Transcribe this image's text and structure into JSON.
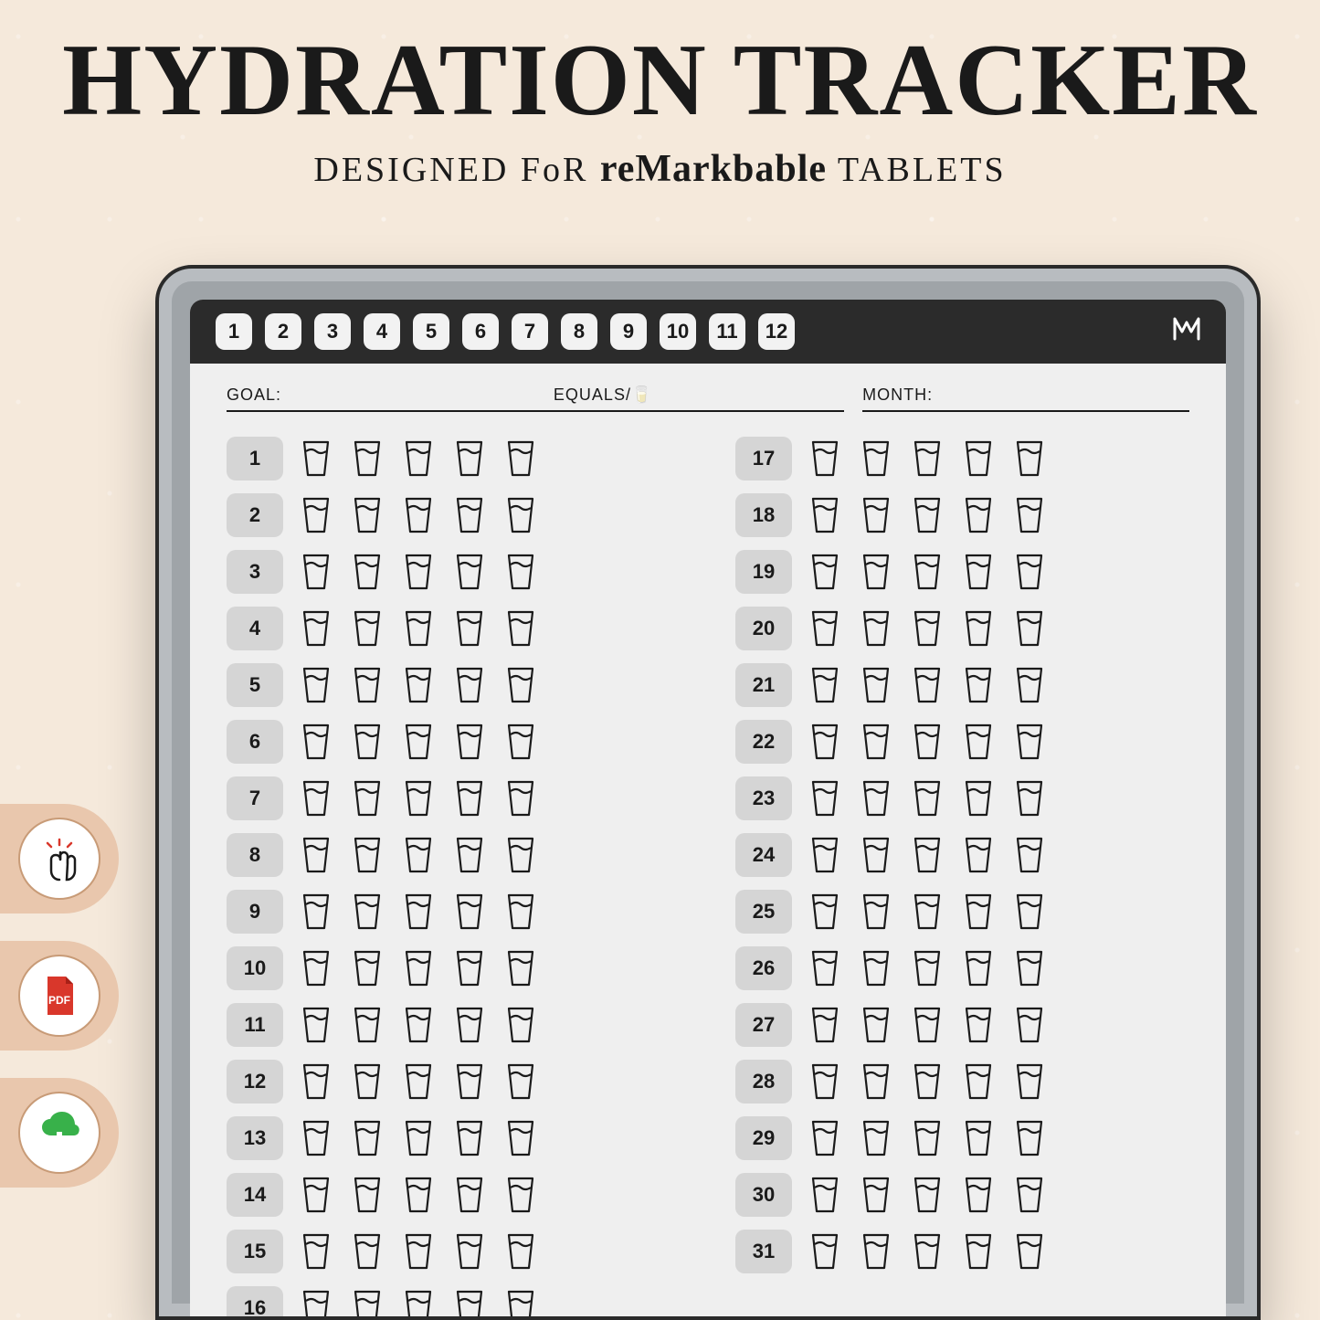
{
  "hero": {
    "title": "HYDRATION TRACKER",
    "subtitle_prefix": "DESIGNED FoR ",
    "subtitle_brand": "reMarkbable",
    "subtitle_suffix": " TABLETS"
  },
  "colors": {
    "page_bg": "#f5e9db",
    "tablet_bezel": "#9fa4a8",
    "tablet_border": "#2a2a2a",
    "screen_bg": "#efefef",
    "topbar_bg": "#2b2b2b",
    "pill_bg": "#f2f2f2",
    "daychip_bg": "#d5d5d5",
    "text": "#1a1a1a",
    "badge_bg": "#e9c7ad",
    "badge_border": "#c89b77",
    "pdf_red": "#d9372b",
    "download_green": "#38b14a",
    "tap_red": "#d9372b"
  },
  "topbar": {
    "months": [
      "1",
      "2",
      "3",
      "4",
      "5",
      "6",
      "7",
      "8",
      "9",
      "10",
      "11",
      "12"
    ],
    "logo": "M"
  },
  "fields": {
    "goal_label": "GOAL:",
    "equals_label": "EQUALS/🥛",
    "month_label": "MONTH:"
  },
  "tracker": {
    "cups_per_day": 5,
    "left_days": [
      "1",
      "2",
      "3",
      "4",
      "5",
      "6",
      "7",
      "8",
      "9",
      "10",
      "11",
      "12",
      "13",
      "14",
      "15",
      "16"
    ],
    "right_days": [
      "17",
      "18",
      "19",
      "20",
      "21",
      "22",
      "23",
      "24",
      "25",
      "26",
      "27",
      "28",
      "29",
      "30",
      "31"
    ]
  },
  "badges": {
    "items": [
      {
        "name": "tap-icon"
      },
      {
        "name": "pdf-icon"
      },
      {
        "name": "download-icon"
      }
    ]
  }
}
